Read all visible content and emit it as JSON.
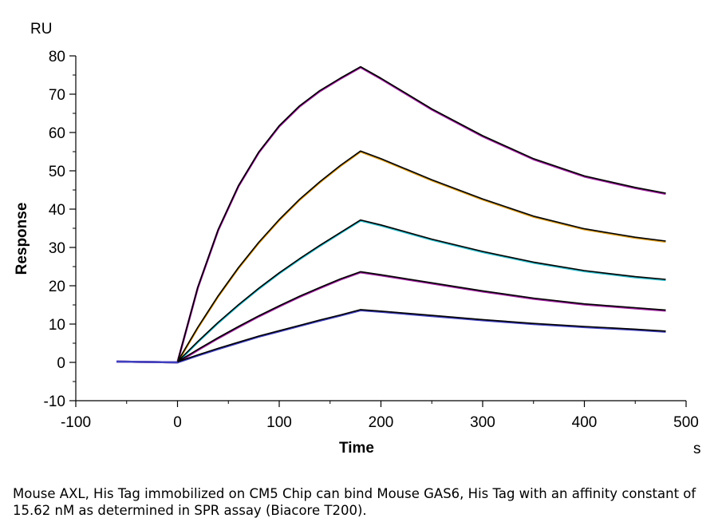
{
  "chart_data": {
    "type": "line",
    "xlabel": "Time",
    "ylabel": "Response",
    "x_unit": "s",
    "y_unit": "RU",
    "xlim": [
      -100,
      500
    ],
    "ylim": [
      -10,
      80
    ],
    "x_ticks": [
      -100,
      0,
      100,
      200,
      300,
      400,
      500
    ],
    "y_ticks": [
      -10,
      0,
      10,
      20,
      30,
      40,
      50,
      60,
      70,
      80
    ],
    "x_tick_labels": [
      "-100",
      "0",
      "100",
      "200",
      "300",
      "400",
      "500"
    ],
    "y_tick_labels": [
      "-10",
      "0",
      "10",
      "20",
      "30",
      "40",
      "50",
      "60",
      "70",
      "80"
    ],
    "grid": false,
    "series": [
      {
        "color": "#a020a0",
        "fit_color": "#000000",
        "x": [
          -60,
          -30,
          0,
          20,
          40,
          60,
          80,
          100,
          120,
          140,
          160,
          180,
          200,
          250,
          300,
          350,
          400,
          450,
          480
        ],
        "y": [
          0.2,
          0.1,
          0.0,
          19.5,
          34.5,
          46.0,
          54.8,
          61.6,
          66.8,
          70.8,
          74.0,
          77.0,
          74.0,
          66.0,
          59.0,
          53.0,
          48.5,
          45.5,
          44.0
        ]
      },
      {
        "color": "#e0a020",
        "fit_color": "#000000",
        "x": [
          -60,
          -30,
          0,
          20,
          40,
          60,
          80,
          100,
          120,
          140,
          160,
          180,
          200,
          250,
          300,
          350,
          400,
          450,
          480
        ],
        "y": [
          0.2,
          0.1,
          0.0,
          9.0,
          17.2,
          24.6,
          31.2,
          37.1,
          42.4,
          47.0,
          51.2,
          55.0,
          53.0,
          47.5,
          42.5,
          38.0,
          34.7,
          32.5,
          31.5
        ]
      },
      {
        "color": "#30c0d0",
        "fit_color": "#000000",
        "x": [
          -60,
          -30,
          0,
          20,
          40,
          60,
          80,
          100,
          120,
          140,
          160,
          180,
          200,
          250,
          300,
          350,
          400,
          450,
          480
        ],
        "y": [
          0.2,
          0.1,
          0.0,
          5.3,
          10.3,
          14.9,
          19.2,
          23.2,
          26.9,
          30.4,
          33.7,
          37.0,
          35.7,
          32.0,
          28.8,
          26.0,
          23.8,
          22.2,
          21.5
        ]
      },
      {
        "color": "#a020a0",
        "fit_color": "#000000",
        "x": [
          -60,
          -30,
          0,
          20,
          40,
          60,
          80,
          100,
          120,
          140,
          160,
          180,
          200,
          250,
          300,
          350,
          400,
          450,
          480
        ],
        "y": [
          0.2,
          0.1,
          0.0,
          3.2,
          6.3,
          9.2,
          12.0,
          14.6,
          17.1,
          19.4,
          21.6,
          23.5,
          22.7,
          20.6,
          18.5,
          16.6,
          15.1,
          14.1,
          13.5
        ]
      },
      {
        "color": "#4040c0",
        "fit_color": "#000000",
        "x": [
          -60,
          -30,
          0,
          20,
          40,
          60,
          80,
          100,
          120,
          140,
          160,
          180,
          200,
          250,
          300,
          350,
          400,
          450,
          480
        ],
        "y": [
          0.2,
          0.1,
          0.0,
          1.8,
          3.5,
          5.1,
          6.7,
          8.1,
          9.5,
          10.9,
          12.2,
          13.6,
          13.2,
          12.1,
          11.0,
          10.0,
          9.2,
          8.5,
          8.0
        ]
      }
    ]
  },
  "caption": "Mouse AXL, His Tag immobilized on CM5 Chip can bind Mouse GAS6, His Tag with an affinity constant of 15.62 nM as determined in SPR assay (Biacore T200)."
}
